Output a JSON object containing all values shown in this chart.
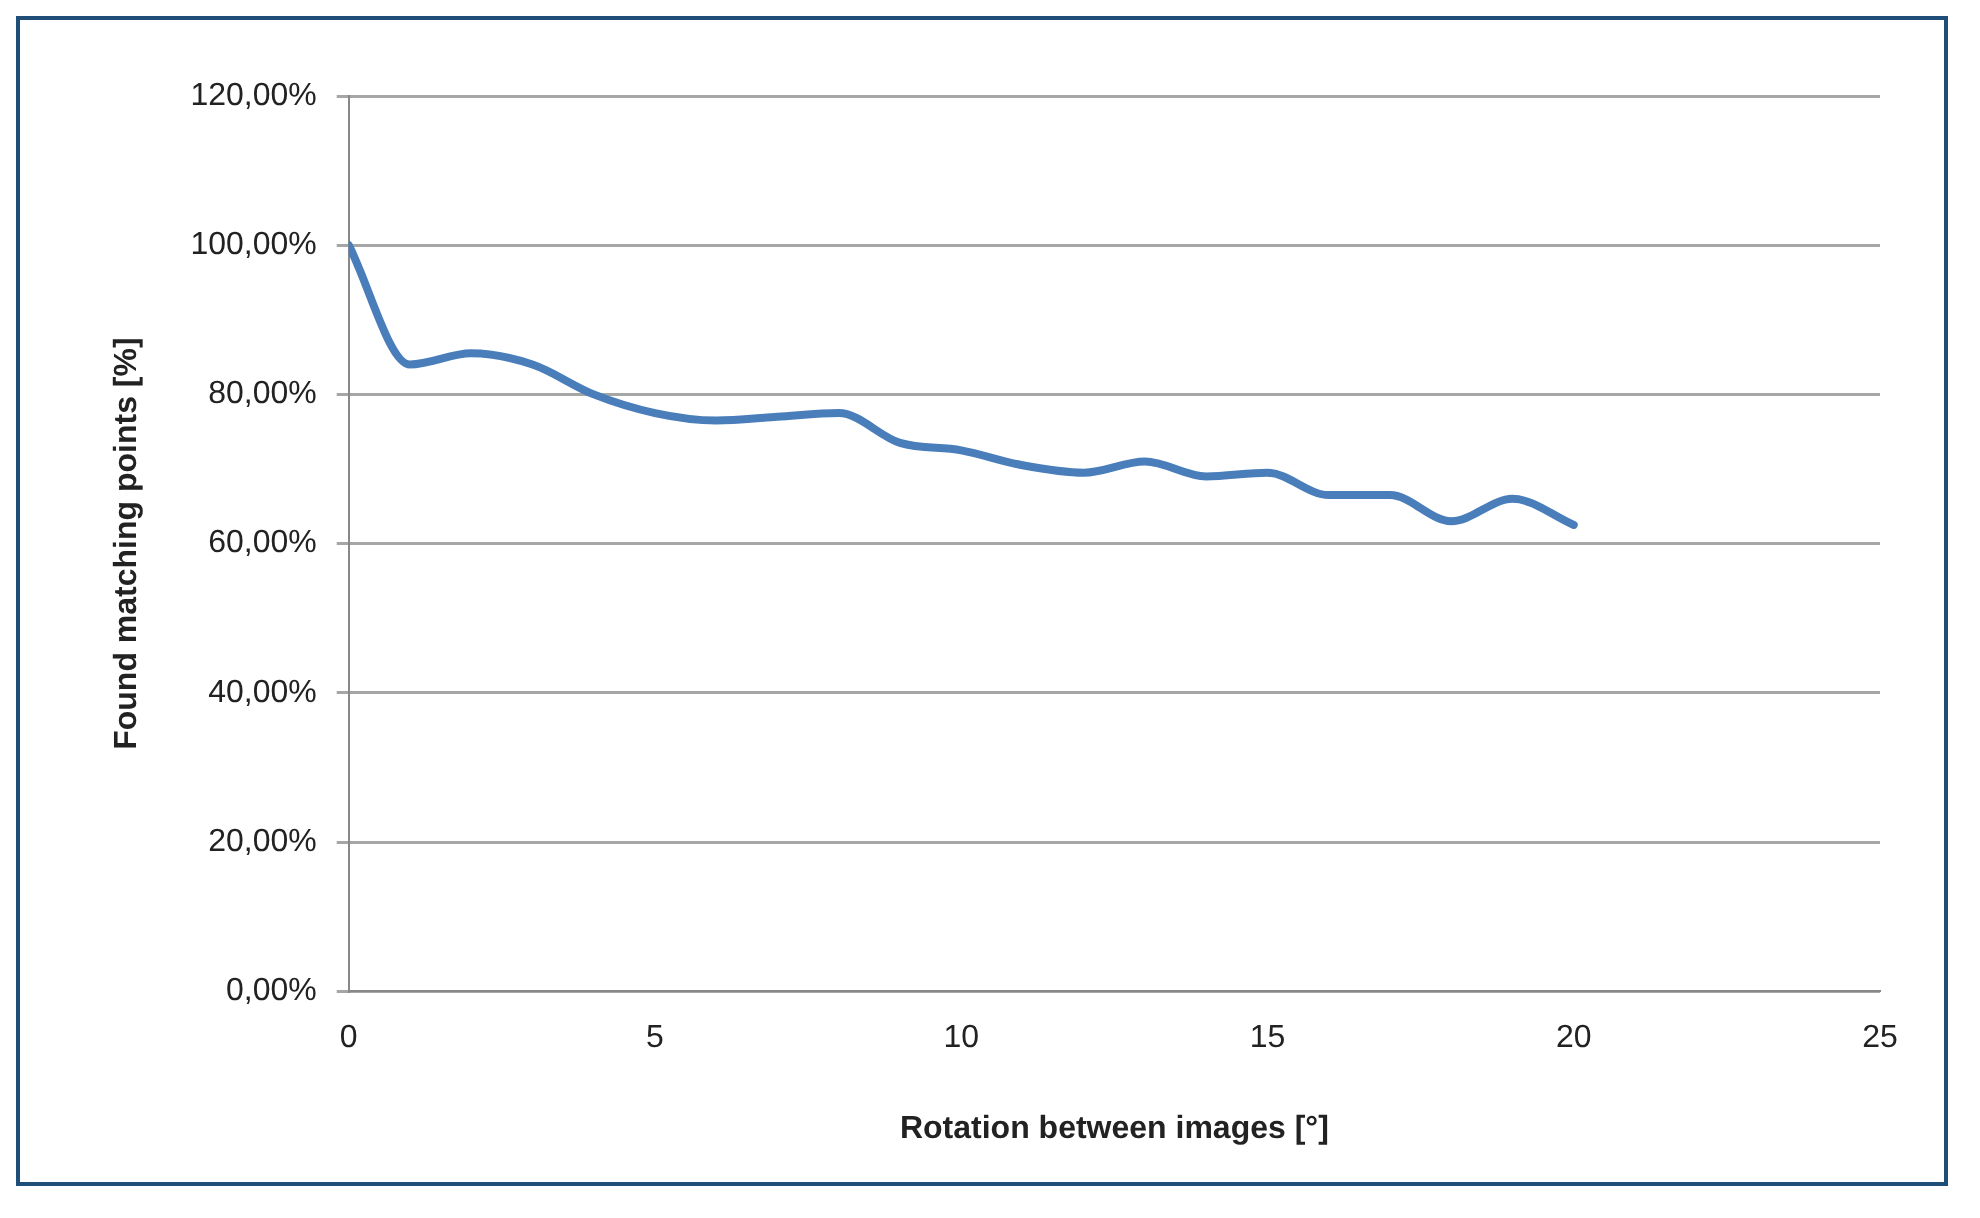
{
  "chart_data": {
    "type": "line",
    "xlabel": "Rotation between images [°]",
    "ylabel": "Found matching points [%]",
    "x": [
      0,
      1,
      2,
      3,
      4,
      5,
      6,
      7,
      8,
      9,
      10,
      11,
      12,
      13,
      14,
      15,
      16,
      17,
      18,
      19,
      20
    ],
    "series": [
      {
        "color": "#4a7ebb",
        "values": [
          100,
          84,
          85.5,
          84,
          80,
          77.5,
          76.5,
          77,
          77.5,
          73.5,
          72.5,
          70.5,
          69.5,
          71,
          69,
          69.5,
          66.5,
          66.5,
          63,
          66,
          62.5
        ]
      }
    ],
    "xlim": [
      0,
      25
    ],
    "xticks": [
      0,
      5,
      10,
      15,
      20,
      25
    ],
    "ylim": [
      0,
      120
    ],
    "yticks": [
      {
        "value": 0,
        "label": "0,00%"
      },
      {
        "value": 20,
        "label": "20,00%"
      },
      {
        "value": 40,
        "label": "40,00%"
      },
      {
        "value": 60,
        "label": "60,00%"
      },
      {
        "value": 80,
        "label": "80,00%"
      },
      {
        "value": 100,
        "label": "100,00%"
      },
      {
        "value": 120,
        "label": "120,00%"
      }
    ],
    "grid": "y",
    "legend": false,
    "marker": "none",
    "line_style": "solid"
  }
}
